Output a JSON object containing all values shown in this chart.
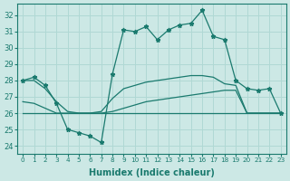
{
  "xlabel": "Humidex (Indice chaleur)",
  "bg_color": "#cce8e5",
  "grid_color": "#b0d8d4",
  "line_color": "#1a7a6e",
  "xlim": [
    -0.5,
    23.5
  ],
  "ylim": [
    23.5,
    32.7
  ],
  "yticks": [
    24,
    25,
    26,
    27,
    28,
    29,
    30,
    31,
    32
  ],
  "xticks": [
    0,
    1,
    2,
    3,
    4,
    5,
    6,
    7,
    8,
    9,
    10,
    11,
    12,
    13,
    14,
    15,
    16,
    17,
    18,
    19,
    20,
    21,
    22,
    23
  ],
  "hours": [
    0,
    1,
    2,
    3,
    4,
    5,
    6,
    7,
    8,
    9,
    10,
    11,
    12,
    13,
    14,
    15,
    16,
    17,
    18,
    19,
    20,
    21,
    22,
    23
  ],
  "humidex": [
    28.0,
    28.2,
    27.7,
    26.6,
    25.0,
    24.8,
    24.6,
    24.2,
    28.4,
    31.1,
    31.0,
    31.3,
    30.5,
    31.1,
    31.4,
    31.5,
    32.3,
    30.7,
    30.5,
    28.0,
    27.5,
    27.4,
    27.5,
    26.0
  ],
  "line_upper": [
    28.0,
    28.0,
    27.5,
    26.7,
    26.1,
    26.0,
    26.0,
    26.1,
    26.9,
    27.5,
    27.7,
    27.9,
    28.0,
    28.1,
    28.2,
    28.3,
    28.3,
    28.2,
    27.8,
    27.7,
    26.0,
    26.0,
    26.0,
    26.0
  ],
  "line_mid": [
    26.7,
    26.6,
    26.3,
    26.0,
    26.0,
    26.0,
    26.0,
    26.0,
    26.1,
    26.3,
    26.5,
    26.7,
    26.8,
    26.9,
    27.0,
    27.1,
    27.2,
    27.3,
    27.4,
    27.4,
    26.0,
    26.0,
    26.0,
    26.0
  ],
  "line_flat": [
    26.0,
    26.0,
    26.0,
    26.0,
    26.0,
    26.0,
    26.0,
    26.0,
    26.0,
    26.0,
    26.0,
    26.0,
    26.0,
    26.0,
    26.0,
    26.0,
    26.0,
    26.0,
    26.0,
    26.0,
    26.0,
    26.0,
    26.0,
    26.0
  ]
}
